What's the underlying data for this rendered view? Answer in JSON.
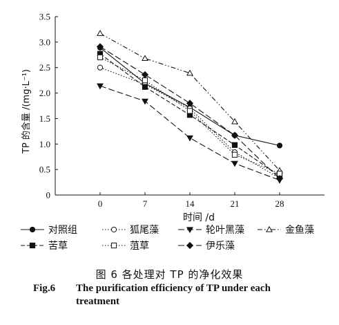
{
  "chart_data": {
    "type": "line",
    "ylabel": "TP 的含量 /(mg·L⁻¹)",
    "xlabel": "时间 /d",
    "x": [
      0,
      7,
      14,
      21,
      28
    ],
    "xlim": [
      -7,
      35
    ],
    "ylim": [
      0,
      3.5
    ],
    "yticks": [
      "0",
      "0.5",
      "1.0",
      "1.5",
      "2.0",
      "2.5",
      "3.0",
      "3.5"
    ],
    "xticks": [
      "0",
      "7",
      "14",
      "21",
      "28"
    ],
    "grid": false,
    "legend_position": "bottom",
    "series": [
      {
        "name": "对照组",
        "marker": "filled-circle",
        "line": "solid",
        "values": [
          2.89,
          2.19,
          1.72,
          1.17,
          0.97
        ]
      },
      {
        "name": "狐尾藻",
        "marker": "open-circle",
        "line": "dotted",
        "values": [
          2.5,
          2.17,
          1.7,
          0.84,
          0.33
        ]
      },
      {
        "name": "轮叶黑藻",
        "marker": "filled-down-triangle",
        "line": "long-dash",
        "values": [
          2.14,
          1.84,
          1.12,
          0.62,
          0.29
        ]
      },
      {
        "name": "金鱼藻",
        "marker": "open-up-triangle",
        "line": "dash-dot-dot",
        "values": [
          3.17,
          2.68,
          2.39,
          1.44,
          0.48
        ]
      },
      {
        "name": "苦草",
        "marker": "filled-square",
        "line": "dash",
        "values": [
          2.77,
          2.12,
          1.57,
          0.98,
          0.37
        ]
      },
      {
        "name": "菹草",
        "marker": "open-square",
        "line": "dotted",
        "values": [
          2.7,
          2.25,
          1.65,
          0.79,
          0.42
        ]
      },
      {
        "name": "伊乐藻",
        "marker": "filled-diamond",
        "line": "long-dash",
        "values": [
          2.91,
          2.36,
          1.8,
          1.17,
          0.32
        ]
      }
    ]
  },
  "caption": {
    "cn": "图 6    各处理对 TP 的净化效果",
    "en_fig": "Fig.6",
    "en_title_1": "The purification efficiency of TP under each",
    "en_title_2": "treatment"
  }
}
